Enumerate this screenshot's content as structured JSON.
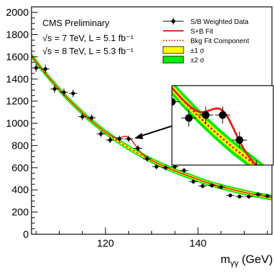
{
  "chart_data": {
    "type": "scatter",
    "title": "",
    "xlabel": "mγγ (GeV)",
    "xlabel_main": "m",
    "xlabel_sub": "γγ",
    "xlabel_unit": " (GeV)",
    "ylabel": "",
    "xlim": [
      104,
      156
    ],
    "ylim": [
      0,
      2050
    ],
    "x_ticks": [
      120,
      140
    ],
    "x_tick_labels": [
      "120",
      "140"
    ],
    "y_ticks": [
      0,
      200,
      400,
      600,
      800,
      1000,
      1200,
      1400,
      1600,
      1800,
      2000
    ],
    "y_tick_labels": [
      "0",
      "200",
      "400",
      "600",
      "800",
      "1000",
      "1200",
      "1400",
      "1600",
      "1800",
      "2000"
    ],
    "annotations": [
      "CMS Preliminary",
      "√s = 7 TeV, L = 5.1 fb⁻¹",
      "√s = 8 TeV, L = 5.3 fb⁻¹"
    ],
    "legend": {
      "placement": "top-right",
      "entries": [
        {
          "label": "S/B Weighted Data",
          "kind": "marker",
          "color": "#000000"
        },
        {
          "label": "S+B Fit",
          "kind": "line",
          "color": "#e8201c"
        },
        {
          "label": "Bkg Fit Component",
          "kind": "dashed",
          "color": "#e8201c"
        },
        {
          "label": "±1 σ",
          "kind": "box",
          "color": "#ffff00"
        },
        {
          "label": "±2 σ",
          "kind": "box",
          "color": "#00ee00"
        }
      ]
    },
    "data_x": [
      105,
      107,
      109,
      111,
      113,
      115,
      117,
      119,
      121,
      123,
      125,
      127,
      129,
      131,
      133,
      135,
      137,
      139,
      141,
      143,
      145,
      147,
      149,
      151,
      153,
      155
    ],
    "data_y": [
      1500,
      1490,
      1310,
      1280,
      1270,
      1060,
      1050,
      905,
      850,
      860,
      860,
      775,
      680,
      610,
      600,
      610,
      575,
      475,
      435,
      440,
      425,
      350,
      340,
      340,
      360,
      345
    ],
    "data_err": [
      38,
      38,
      35,
      35,
      35,
      32,
      32,
      30,
      29,
      29,
      29,
      28,
      26,
      25,
      25,
      25,
      24,
      22,
      21,
      21,
      20,
      19,
      18,
      18,
      19,
      19
    ],
    "bkg_fit_x": [
      104,
      106,
      108,
      110,
      112,
      114,
      116,
      118,
      120,
      122,
      124,
      126,
      128,
      130,
      132,
      134,
      136,
      138,
      140,
      142,
      144,
      146,
      148,
      150,
      152,
      154,
      156
    ],
    "bkg_fit_y": [
      1610,
      1500,
      1400,
      1305,
      1215,
      1135,
      1055,
      985,
      920,
      860,
      805,
      755,
      710,
      665,
      625,
      590,
      555,
      525,
      495,
      465,
      440,
      418,
      398,
      378,
      360,
      345,
      330
    ],
    "signal_peak_mass": 125,
    "signal_peak_width": 1.5,
    "signal_peak_height": 95,
    "band_1sigma_width": 12,
    "band_2sigma_width": 25,
    "inset": {
      "description": "zoom",
      "xlim": [
        119,
        131
      ],
      "ylim": [
        690,
        960
      ]
    },
    "colors": {
      "fit": "#e8201c",
      "band1": "#ffff00",
      "band2": "#00ee00",
      "data": "#000000"
    }
  }
}
